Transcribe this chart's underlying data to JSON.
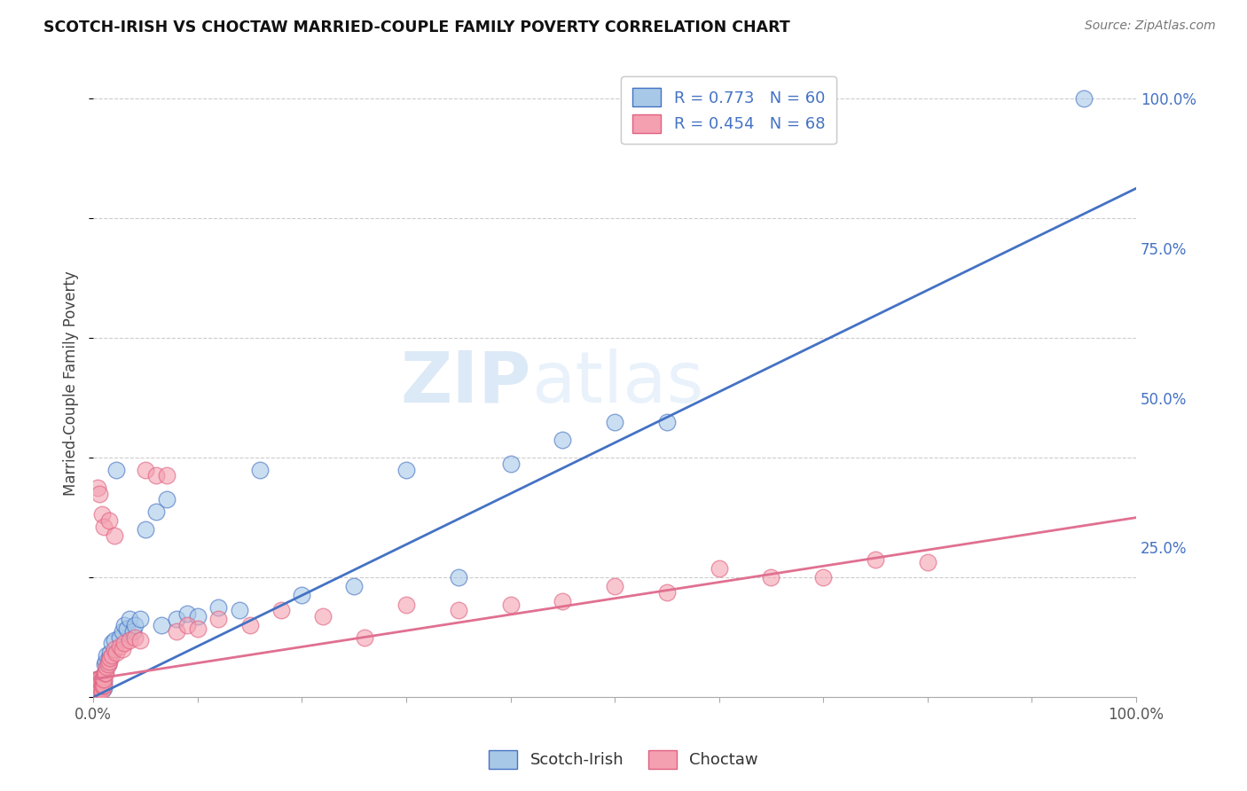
{
  "title": "SCOTCH-IRISH VS CHOCTAW MARRIED-COUPLE FAMILY POVERTY CORRELATION CHART",
  "source": "Source: ZipAtlas.com",
  "xlabel": "",
  "ylabel": "Married-Couple Family Poverty",
  "xmin": 0.0,
  "xmax": 1.0,
  "ymin": 0.0,
  "ymax": 1.05,
  "xtick_positions": [
    0.0,
    0.1,
    0.2,
    0.3,
    0.4,
    0.5,
    0.6,
    0.7,
    0.8,
    0.9,
    1.0
  ],
  "xticklabels": [
    "0.0%",
    "",
    "",
    "",
    "",
    "",
    "",
    "",
    "",
    "",
    "100.0%"
  ],
  "ytick_positions": [
    0.0,
    0.25,
    0.5,
    0.75,
    1.0
  ],
  "ytick_labels": [
    "",
    "25.0%",
    "50.0%",
    "75.0%",
    "100.0%"
  ],
  "scotch_irish_color": "#a8c8e8",
  "scotch_irish_edge_color": "#4472c4",
  "scotch_irish_line_color": "#4472c4",
  "choctaw_color": "#f4a0b0",
  "choctaw_edge_color": "#e06080",
  "choctaw_line_color": "#e07090",
  "R_scotch": 0.773,
  "N_scotch": 60,
  "R_choctaw": 0.454,
  "N_choctaw": 68,
  "legend_text_color": "#4472c4",
  "watermark_zip": "ZIP",
  "watermark_atlas": "atlas",
  "scotch_irish_x": [
    0.001,
    0.002,
    0.002,
    0.003,
    0.003,
    0.003,
    0.004,
    0.004,
    0.004,
    0.005,
    0.005,
    0.005,
    0.006,
    0.006,
    0.007,
    0.007,
    0.007,
    0.008,
    0.008,
    0.009,
    0.009,
    0.01,
    0.01,
    0.011,
    0.011,
    0.012,
    0.013,
    0.014,
    0.015,
    0.016,
    0.018,
    0.02,
    0.022,
    0.025,
    0.028,
    0.03,
    0.032,
    0.035,
    0.038,
    0.04,
    0.045,
    0.05,
    0.06,
    0.065,
    0.07,
    0.08,
    0.09,
    0.1,
    0.12,
    0.14,
    0.16,
    0.2,
    0.25,
    0.3,
    0.35,
    0.4,
    0.45,
    0.5,
    0.55,
    0.95
  ],
  "scotch_irish_y": [
    0.005,
    0.01,
    0.02,
    0.005,
    0.015,
    0.025,
    0.01,
    0.02,
    0.03,
    0.01,
    0.02,
    0.03,
    0.015,
    0.025,
    0.01,
    0.02,
    0.03,
    0.015,
    0.025,
    0.015,
    0.025,
    0.015,
    0.025,
    0.04,
    0.055,
    0.06,
    0.07,
    0.055,
    0.065,
    0.075,
    0.09,
    0.095,
    0.38,
    0.1,
    0.11,
    0.12,
    0.115,
    0.13,
    0.11,
    0.12,
    0.13,
    0.28,
    0.31,
    0.12,
    0.33,
    0.13,
    0.14,
    0.135,
    0.15,
    0.145,
    0.38,
    0.17,
    0.185,
    0.38,
    0.2,
    0.39,
    0.43,
    0.46,
    0.46,
    1.0
  ],
  "choctaw_x": [
    0.001,
    0.001,
    0.002,
    0.002,
    0.003,
    0.003,
    0.003,
    0.004,
    0.004,
    0.004,
    0.005,
    0.005,
    0.005,
    0.006,
    0.006,
    0.006,
    0.007,
    0.007,
    0.008,
    0.008,
    0.008,
    0.009,
    0.009,
    0.01,
    0.01,
    0.011,
    0.012,
    0.013,
    0.014,
    0.015,
    0.016,
    0.018,
    0.02,
    0.022,
    0.025,
    0.028,
    0.03,
    0.035,
    0.04,
    0.045,
    0.05,
    0.06,
    0.07,
    0.08,
    0.09,
    0.1,
    0.12,
    0.15,
    0.18,
    0.22,
    0.26,
    0.3,
    0.35,
    0.4,
    0.45,
    0.5,
    0.55,
    0.6,
    0.65,
    0.7,
    0.75,
    0.8,
    0.004,
    0.006,
    0.008,
    0.01,
    0.015,
    0.02
  ],
  "choctaw_y": [
    0.01,
    0.02,
    0.01,
    0.02,
    0.01,
    0.02,
    0.03,
    0.01,
    0.02,
    0.03,
    0.01,
    0.02,
    0.03,
    0.01,
    0.02,
    0.03,
    0.015,
    0.025,
    0.01,
    0.02,
    0.03,
    0.02,
    0.03,
    0.02,
    0.03,
    0.04,
    0.04,
    0.05,
    0.055,
    0.06,
    0.065,
    0.07,
    0.08,
    0.075,
    0.085,
    0.08,
    0.09,
    0.095,
    0.1,
    0.095,
    0.38,
    0.37,
    0.37,
    0.11,
    0.12,
    0.115,
    0.13,
    0.12,
    0.145,
    0.135,
    0.1,
    0.155,
    0.145,
    0.155,
    0.16,
    0.185,
    0.175,
    0.215,
    0.2,
    0.2,
    0.23,
    0.225,
    0.35,
    0.34,
    0.305,
    0.285,
    0.295,
    0.27
  ],
  "si_line_x0": 0.0,
  "si_line_y0": 0.0,
  "si_line_x1": 1.0,
  "si_line_y1": 0.85,
  "ch_line_x0": 0.0,
  "ch_line_y0": 0.03,
  "ch_line_x1": 1.0,
  "ch_line_y1": 0.3
}
